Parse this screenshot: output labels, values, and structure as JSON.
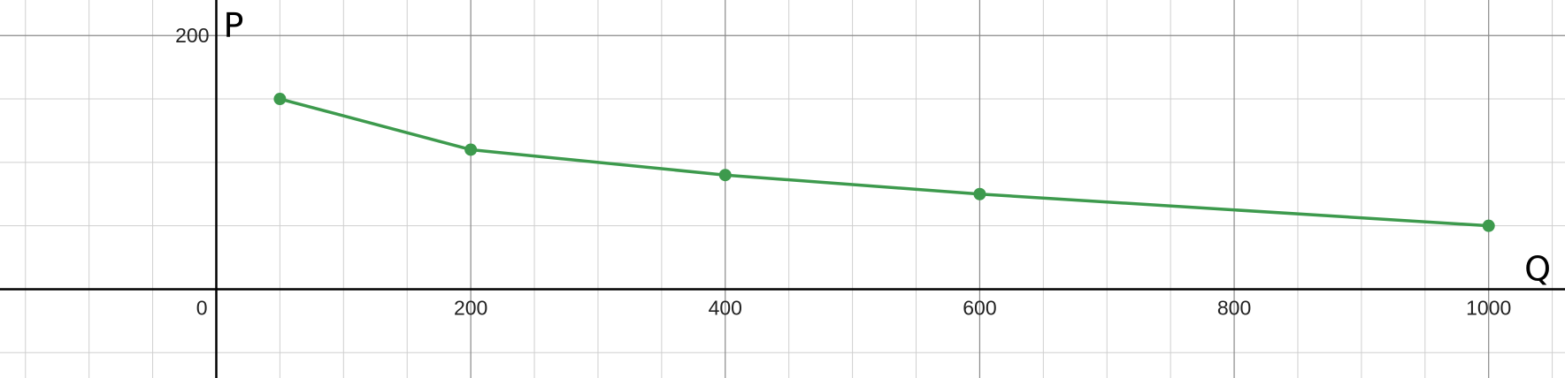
{
  "chart_data": {
    "type": "line",
    "xlabel": "Q",
    "ylabel": "P",
    "xlim": [
      -170,
      1060
    ],
    "ylim": [
      -70,
      228
    ],
    "grid": true,
    "x_ticks": [
      200,
      400,
      600,
      800,
      1000
    ],
    "y_ticks": [
      200
    ],
    "origin_label": "0",
    "x_tick_labels": [
      "200",
      "400",
      "600",
      "800",
      "1000"
    ],
    "y_tick_labels": [
      "200"
    ],
    "series": [
      {
        "color": "#3d9a4d",
        "points": [
          {
            "x": 50,
            "y": 150
          },
          {
            "x": 200,
            "y": 110
          },
          {
            "x": 400,
            "y": 90
          },
          {
            "x": 600,
            "y": 75
          },
          {
            "x": 1000,
            "y": 50
          }
        ]
      }
    ]
  }
}
